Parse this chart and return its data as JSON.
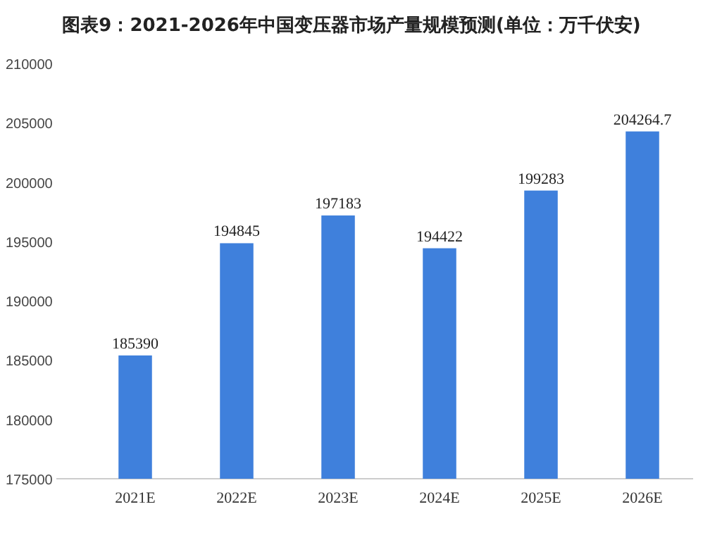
{
  "chart_data": {
    "type": "bar",
    "title": "图表9：2021-2026年中国变压器市场产量规模预测(单位：万千伏安)",
    "categories": [
      "2021E",
      "2022E",
      "2023E",
      "2024E",
      "2025E",
      "2026E"
    ],
    "values": [
      185390,
      194845,
      197183,
      194422,
      199283,
      204264.7
    ],
    "color": "#3f80dc",
    "data_labels": true,
    "grid": false,
    "ylim": [
      175000,
      210000
    ],
    "yticks": [
      175000,
      180000,
      185000,
      190000,
      195000,
      200000,
      205000,
      210000
    ]
  }
}
